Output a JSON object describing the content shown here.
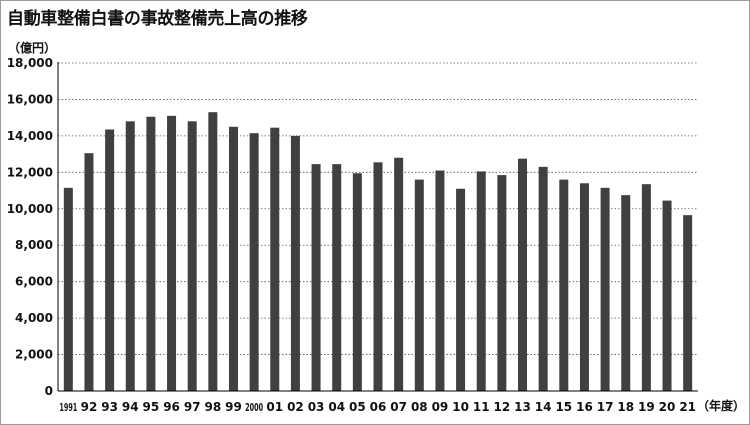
{
  "colors": {
    "bar": "#404040",
    "grid": "#555555",
    "axis": "#000000"
  },
  "chart_data": {
    "type": "bar",
    "title": "自動車整備白書の事故整備売上高の推移",
    "ylabel": "（億円）",
    "xlabel": "（年度）",
    "ylim": [
      0,
      18000
    ],
    "y_ticks": [
      0,
      2000,
      4000,
      6000,
      8000,
      10000,
      12000,
      14000,
      16000,
      18000
    ],
    "y_tick_labels": [
      "0",
      "2,000",
      "4,000",
      "6,000",
      "8,000",
      "10,000",
      "12,000",
      "14,000",
      "16,000",
      "18,000"
    ],
    "grid": "horizontal-dotted",
    "categories": [
      "1991",
      "92",
      "93",
      "94",
      "95",
      "96",
      "97",
      "98",
      "99",
      "2000",
      "01",
      "02",
      "03",
      "04",
      "05",
      "06",
      "07",
      "08",
      "09",
      "10",
      "11",
      "12",
      "13",
      "14",
      "15",
      "16",
      "17",
      "18",
      "19",
      "20",
      "21"
    ],
    "values": [
      11150,
      13050,
      14350,
      14800,
      15050,
      15100,
      14800,
      15300,
      14500,
      14150,
      14450,
      14000,
      12450,
      12450,
      11950,
      12550,
      12800,
      11600,
      12100,
      11100,
      12050,
      11850,
      12750,
      12300,
      11600,
      11400,
      11150,
      10750,
      11350,
      10450,
      9650
    ]
  }
}
